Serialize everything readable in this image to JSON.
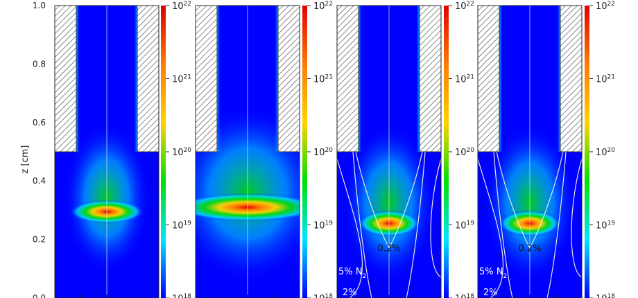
{
  "chart_data": {
    "type": "heatmap",
    "ylabel": "z [cm]",
    "ylim": [
      0,
      1.0
    ],
    "yticks": [
      "0.0",
      "0.2",
      "0.4",
      "0.6",
      "0.8",
      "1.0"
    ],
    "colorbar_scale": "log",
    "colorbar_range": [
      1e+18,
      1e+22
    ],
    "colorbar_ticks": [
      {
        "base": "10",
        "exp": "18"
      },
      {
        "base": "10",
        "exp": "19"
      },
      {
        "base": "10",
        "exp": "20"
      },
      {
        "base": "10",
        "exp": "21"
      },
      {
        "base": "10",
        "exp": "22"
      }
    ],
    "colormap": [
      "#0000ff",
      "#00e5ff",
      "#00e000",
      "#ffd200",
      "#ff7a00",
      "#e00000"
    ],
    "panels": [
      {
        "peak_z": 0.295,
        "peak_width": 0.045,
        "spread": "narrow",
        "contours": []
      },
      {
        "peak_z": 0.31,
        "peak_width": 0.07,
        "spread": "wide",
        "contours": []
      },
      {
        "peak_z": 0.255,
        "peak_width": 0.05,
        "spread": "v-shape",
        "contours": [
          {
            "label": "0.2%"
          },
          {
            "label": "5% N",
            "sub": "2"
          },
          {
            "label": "2%"
          }
        ]
      },
      {
        "peak_z": 0.255,
        "peak_width": 0.05,
        "spread": "v-shape",
        "contours": [
          {
            "label": "0.2%"
          },
          {
            "label": "5% N",
            "sub": "2"
          },
          {
            "label": "2%"
          }
        ]
      }
    ]
  }
}
